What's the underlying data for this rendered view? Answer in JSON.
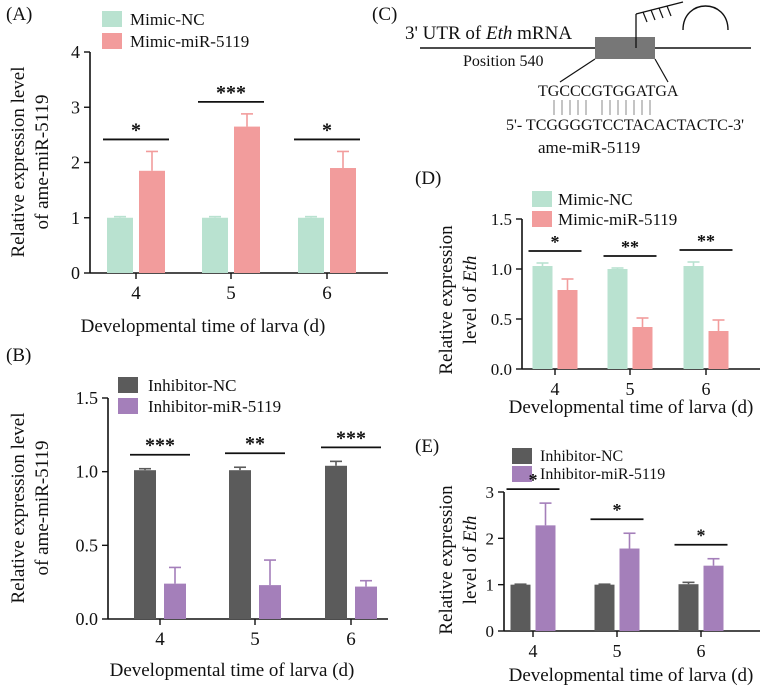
{
  "colors": {
    "mimic_nc": "#b9e2d0",
    "mimic_mir": "#f29c9c",
    "inhibitor_nc": "#5b5b5b",
    "inhibitor_mir": "#a47fba",
    "axis": "#111111"
  },
  "chart_data": [
    {
      "id": "A",
      "panel_label": "(A)",
      "type": "bar",
      "ylabel_line1": "Relative expression level",
      "ylabel_line2": "of ame-miR-5119",
      "xlabel": "Developmental time of larva (d)",
      "categories": [
        "4",
        "5",
        "6"
      ],
      "ylim": [
        0,
        4
      ],
      "yticks": [
        0,
        1,
        2,
        3,
        4
      ],
      "ytick_labels": [
        "0",
        "1",
        "2",
        "3",
        "4"
      ],
      "series": [
        {
          "name": "Mimic-NC",
          "values": [
            1.0,
            1.0,
            1.0
          ],
          "errors": [
            0.02,
            0.02,
            0.02
          ]
        },
        {
          "name": "Mimic-miR-5119",
          "values": [
            1.85,
            2.65,
            1.9
          ],
          "errors": [
            0.35,
            0.23,
            0.3
          ]
        }
      ],
      "significance": [
        "*",
        "***",
        "*"
      ]
    },
    {
      "id": "B",
      "panel_label": "(B)",
      "type": "bar",
      "ylabel_line1": "Relative expression level",
      "ylabel_line2": "of ame-miR-5119",
      "xlabel": "Developmental time of larva (d)",
      "categories": [
        "4",
        "5",
        "6"
      ],
      "ylim": [
        0,
        1.5
      ],
      "yticks": [
        0,
        0.5,
        1.0,
        1.5
      ],
      "ytick_labels": [
        "0.0",
        "0.5",
        "1.0",
        "1.5"
      ],
      "series": [
        {
          "name": "Inhibitor-NC",
          "values": [
            1.01,
            1.01,
            1.04
          ],
          "errors": [
            0.01,
            0.02,
            0.03
          ]
        },
        {
          "name": "Inhibitor-miR-5119",
          "values": [
            0.24,
            0.23,
            0.22
          ],
          "errors": [
            0.11,
            0.17,
            0.04
          ]
        }
      ],
      "significance": [
        "***",
        "**",
        "***"
      ]
    },
    {
      "id": "D",
      "panel_label": "(D)",
      "type": "bar",
      "ylabel_line1": "Relative expression",
      "ylabel_line2": "level of ",
      "ylabel_italic": "Eth",
      "xlabel": "Developmental time of larva (d)",
      "categories": [
        "4",
        "5",
        "6"
      ],
      "ylim": [
        0,
        1.5
      ],
      "yticks": [
        0,
        0.5,
        1.0,
        1.5
      ],
      "ytick_labels": [
        "0.0",
        "0.5",
        "1.0",
        "1.5"
      ],
      "series": [
        {
          "name": "Mimic-NC",
          "values": [
            1.03,
            1.0,
            1.03
          ],
          "errors": [
            0.03,
            0.01,
            0.04
          ]
        },
        {
          "name": "Mimic-miR-5119",
          "values": [
            0.79,
            0.42,
            0.38
          ],
          "errors": [
            0.11,
            0.09,
            0.11
          ]
        }
      ],
      "significance": [
        "*",
        "**",
        "**"
      ]
    },
    {
      "id": "E",
      "panel_label": "(E)",
      "type": "bar",
      "ylabel_line1": "Relative expression",
      "ylabel_line2": "level of ",
      "ylabel_italic": "Eth",
      "xlabel": "Developmental time of larva (d)",
      "categories": [
        "4",
        "5",
        "6"
      ],
      "ylim": [
        0,
        3
      ],
      "yticks": [
        0,
        1,
        2,
        3
      ],
      "ytick_labels": [
        "0",
        "1",
        "2",
        "3"
      ],
      "series": [
        {
          "name": "Inhibitor-NC",
          "values": [
            1.0,
            1.0,
            1.01
          ],
          "errors": [
            0.01,
            0.01,
            0.04
          ]
        },
        {
          "name": "Inhibitor-miR-5119",
          "values": [
            2.28,
            1.78,
            1.41
          ],
          "errors": [
            0.48,
            0.33,
            0.15
          ]
        }
      ],
      "significance": [
        "*",
        "*",
        "*"
      ]
    }
  ],
  "diagram": {
    "panel_label": "(C)",
    "utr_prefix": "3' UTR of ",
    "utr_gene": "Eth",
    "utr_suffix": " mRNA",
    "position": "Position 540",
    "target_seq": "TGCCCGTGGATGA",
    "mirna_seq": "5'- TCGGGGTCCTACACTACTC-3'",
    "mirna_name": "ame-miR-5119"
  }
}
